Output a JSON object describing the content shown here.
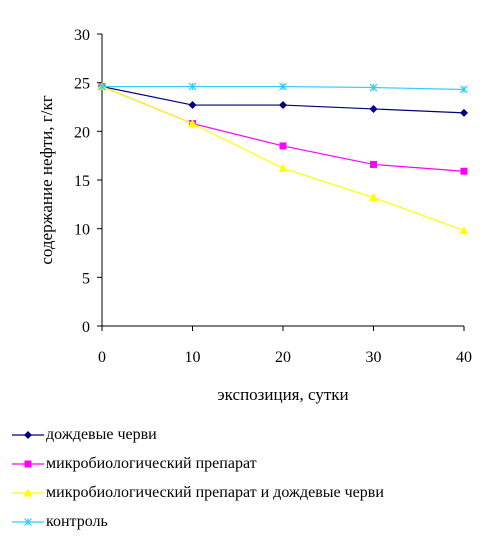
{
  "chart_data": {
    "type": "line",
    "title": "",
    "xlabel": "экспозиция, сутки",
    "ylabel": "содержание нефти, г/кг",
    "x": [
      0,
      10,
      20,
      30,
      40
    ],
    "xlim": [
      0,
      40
    ],
    "ylim": [
      0,
      30
    ],
    "x_ticks": [
      "0",
      "10",
      "20",
      "30",
      "40"
    ],
    "y_ticks": [
      "0",
      "5",
      "10",
      "15",
      "20",
      "25",
      "30"
    ],
    "grid": false,
    "legend_position": "bottom",
    "series": [
      {
        "name": "дождевые черви",
        "values": [
          24.6,
          22.7,
          22.7,
          22.3,
          21.9
        ],
        "color": "#000080",
        "marker": "diamond"
      },
      {
        "name": "микробиологический препарат",
        "values": [
          24.6,
          20.8,
          18.5,
          16.6,
          15.9
        ],
        "color": "#ff00ff",
        "marker": "square"
      },
      {
        "name": "микробиологический препарат и дождевые черви",
        "values": [
          24.6,
          20.8,
          16.2,
          13.2,
          9.8
        ],
        "color": "#ffff00",
        "marker": "triangle"
      },
      {
        "name": "контроль",
        "values": [
          24.6,
          24.6,
          24.6,
          24.5,
          24.3
        ],
        "color": "#33ccff",
        "marker": "star"
      }
    ]
  }
}
